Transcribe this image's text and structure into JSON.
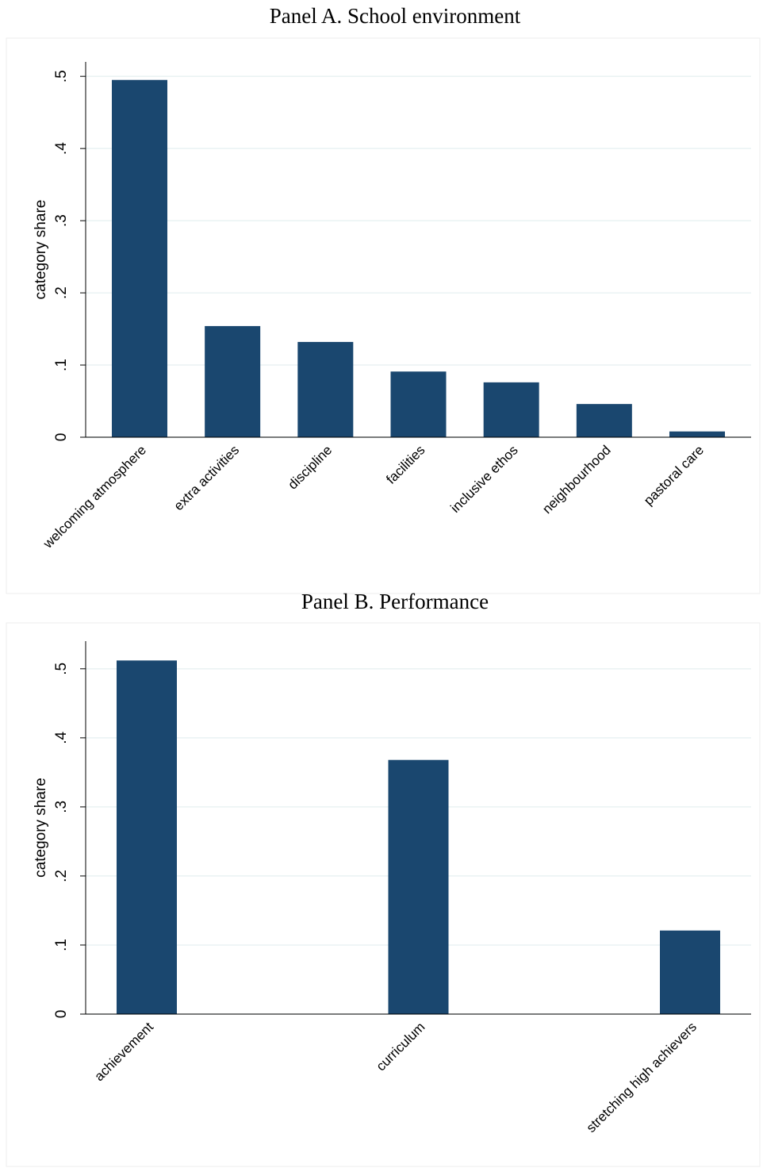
{
  "chart_data": [
    {
      "type": "bar",
      "title": "Panel A. School environment",
      "ylabel": "category share",
      "categories": [
        "welcoming atmosphere",
        "extra activities",
        "discipline",
        "facilities",
        "inclusive ethos",
        "neighbourhood",
        "pastoral care"
      ],
      "values": [
        0.495,
        0.154,
        0.132,
        0.091,
        0.076,
        0.046,
        0.008
      ],
      "color": "#1a476f",
      "ylim": [
        0,
        0.52
      ],
      "yticks": [
        0,
        {
          "value": 0.1,
          "label": ".1"
        },
        {
          "value": 0.2,
          "label": ".2"
        },
        {
          "value": 0.3,
          "label": ".3"
        },
        {
          "value": 0.4,
          "label": ".4"
        },
        {
          "value": 0.5,
          "label": ".5"
        }
      ],
      "grid": true
    },
    {
      "type": "bar",
      "title": "Panel B. Performance",
      "ylabel": "category share",
      "categories": [
        "achievement",
        "curriculum",
        "stretching high achievers"
      ],
      "values": [
        0.512,
        0.368,
        0.121
      ],
      "color": "#1a476f",
      "ylim": [
        0,
        0.54
      ],
      "yticks": [
        0,
        {
          "value": 0.1,
          "label": ".1"
        },
        {
          "value": 0.2,
          "label": ".2"
        },
        {
          "value": 0.3,
          "label": ".3"
        },
        {
          "value": 0.4,
          "label": ".4"
        },
        {
          "value": 0.5,
          "label": ".5"
        }
      ],
      "grid": true
    }
  ]
}
